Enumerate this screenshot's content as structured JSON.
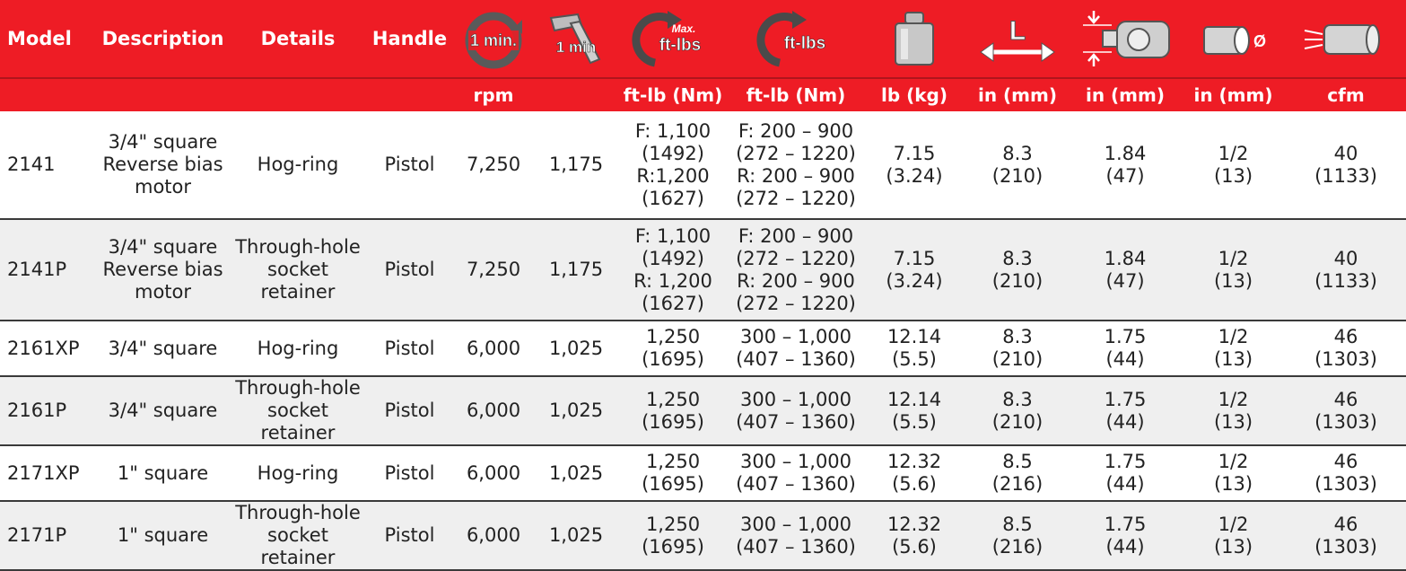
{
  "header": {
    "model": "Model",
    "description": "Description",
    "details": "Details",
    "handle": "Handle",
    "icon_labels": {
      "one_min_circle": "1 min.",
      "one_min_hammer": "1 min",
      "max_small": "Max.",
      "max_ftlbs": "ft-lbs",
      "ftlbs": "ft-lbs",
      "length_letter": "L",
      "diameter_symbol": "Ø"
    }
  },
  "units": [
    "",
    "",
    "",
    "",
    "rpm",
    "",
    "ft-lb (Nm)",
    "ft-lb (Nm)",
    "lb (kg)",
    "in (mm)",
    "in (mm)",
    "in (mm)",
    "cfm"
  ],
  "rows": [
    [
      "2141",
      "3/4\" square\nReverse bias\nmotor",
      "Hog-ring",
      "Pistol",
      "7,250",
      "1,175",
      "F: 1,100\n(1492)\nR:1,200\n(1627)",
      "F: 200 – 900\n(272 – 1220)\nR: 200 – 900\n(272 – 1220)",
      "7.15\n(3.24)",
      "8.3\n(210)",
      "1.84\n(47)",
      "1/2\n(13)",
      "40\n(1133)"
    ],
    [
      "2141P",
      "3/4\" square\nReverse bias\nmotor",
      "Through-hole\nsocket retainer",
      "Pistol",
      "7,250",
      "1,175",
      "F: 1,100\n(1492)\nR: 1,200\n(1627)",
      "F: 200 – 900\n(272 – 1220)\nR: 200 – 900\n(272 – 1220)",
      "7.15\n(3.24)",
      "8.3\n(210)",
      "1.84\n(47)",
      "1/2\n(13)",
      "40\n(1133)"
    ],
    [
      "2161XP",
      "3/4\" square",
      "Hog-ring",
      "Pistol",
      "6,000",
      "1,025",
      "1,250\n(1695)",
      "300 – 1,000\n(407 – 1360)",
      "12.14\n(5.5)",
      "8.3\n(210)",
      "1.75\n(44)",
      "1/2\n(13)",
      "46\n(1303)"
    ],
    [
      "2161P",
      "3/4\" square",
      "Through-hole\nsocket retainer",
      "Pistol",
      "6,000",
      "1,025",
      "1,250\n(1695)",
      "300 – 1,000\n(407 – 1360)",
      "12.14\n(5.5)",
      "8.3\n(210)",
      "1.75\n(44)",
      "1/2\n(13)",
      "46\n(1303)"
    ],
    [
      "2171XP",
      "1\" square",
      "Hog-ring",
      "Pistol",
      "6,000",
      "1,025",
      "1,250\n(1695)",
      "300 – 1,000\n(407 – 1360)",
      "12.32\n(5.6)",
      "8.5\n(216)",
      "1.75\n(44)",
      "1/2\n(13)",
      "46\n(1303)"
    ],
    [
      "2171P",
      "1\" square",
      "Through-hole\nsocket retainer",
      "Pistol",
      "6,000",
      "1,025",
      "1,250\n(1695)",
      "300 – 1,000\n(407 – 1360)",
      "12.32\n(5.6)",
      "8.5\n(216)",
      "1.75\n(44)",
      "1/2\n(13)",
      "46\n(1303)"
    ]
  ],
  "icons": [
    "free-speed-icon",
    "impacts-per-minute-icon",
    "max-torque-icon",
    "torque-range-icon",
    "weight-icon",
    "length-icon",
    "center-to-side-icon",
    "air-hose-size-icon",
    "air-consumption-icon"
  ],
  "colors": {
    "header_red": "#ee1c25",
    "alt_row": "#efefef"
  }
}
